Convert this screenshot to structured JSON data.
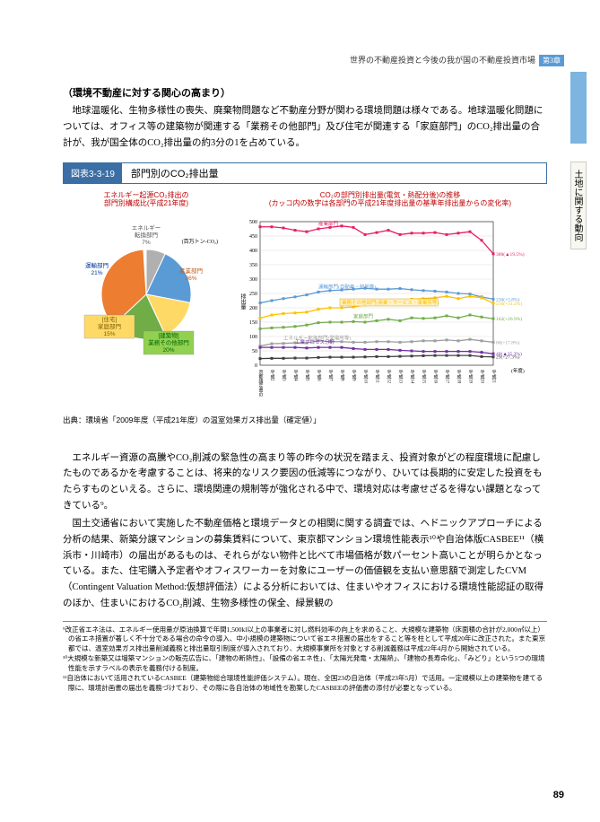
{
  "header": {
    "text": "世界の不動産投資と今後の我が国の不動産投資市場",
    "chapter": "第3章"
  },
  "side_tab": "土地に関する動向",
  "subtitle": "（環境不動産に対する関心の高まり）",
  "para1": "地球温暖化、生物多様性の喪失、廃棄物問題など不動産分野が関わる環境問題は様々である。地球温暖化問題については、オフィス等の建築物が関連する「業務その他部門」及び住宅が関連する「家庭部門」のCO₂排出量の合計が、我が国全体のCO₂排出量の約3分の1を占めている。",
  "figure": {
    "num": "図表3-3-19",
    "title": "部門別のCO₂排出量"
  },
  "pie": {
    "title1": "エネルギー起源CO₂排出の",
    "title2": "部門別構成比(平成21年度)",
    "unit": "(百万トン-CO₂)",
    "slices": [
      {
        "label": "エネルギー転換部門",
        "pct": 7,
        "color": "#b0b0b0",
        "text": "7%"
      },
      {
        "label": "運輸部門",
        "pct": 21,
        "color": "#5b9bd5",
        "text": "21%"
      },
      {
        "label": "[住宅]\\n家庭部門",
        "pct": 15,
        "color": "#ffd966",
        "text": "15%"
      },
      {
        "label": "[建築物]\\n業務その他部門",
        "pct": 20,
        "color": "#70ad47",
        "text": "20%"
      },
      {
        "label": "産業部門",
        "pct": 36,
        "color": "#ed7d31",
        "text": "36%"
      }
    ]
  },
  "linechart": {
    "title1": "CO₂の部門別排出量(電気・熱配分後)の推移",
    "title2": "(カッコ内の数字は各部門の平成21年度排出量の基準年排出量からの変化率)",
    "ylabel": "排出量",
    "ymax": 500,
    "ymin": 0,
    "ytick": 50,
    "xlabels": [
      "京都議定書の基準年",
      "平成2",
      "平成3",
      "平成4",
      "平成5",
      "平成6",
      "平成7",
      "平成8",
      "平成9",
      "平成10",
      "平成11",
      "平成12",
      "平成13",
      "平成14",
      "平成15",
      "平成16",
      "平成17",
      "平成18",
      "平成19",
      "平成20",
      "平成21"
    ],
    "xunit": "(年度)",
    "series": [
      {
        "name": "産業部門",
        "color": "#e91e63",
        "values": [
          482,
          482,
          478,
          470,
          465,
          475,
          480,
          485,
          480,
          455,
          462,
          470,
          455,
          460,
          460,
          462,
          455,
          460,
          465,
          435,
          388
        ],
        "endlabel": "388(▲19.5%)"
      },
      {
        "name": "運輸部門(自動車・船舶等)",
        "color": "#5b9bd5",
        "values": [
          217,
          225,
          232,
          238,
          245,
          255,
          260,
          262,
          265,
          268,
          265,
          265,
          267,
          263,
          260,
          258,
          255,
          250,
          248,
          238,
          230
        ],
        "endlabel": "230(+5.8%)"
      },
      {
        "name": "業務その他部門(商業・サービス・事業所等)",
        "color": "#ffc000",
        "boxed": true,
        "values": [
          164,
          175,
          180,
          182,
          185,
          195,
          200,
          200,
          203,
          210,
          215,
          220,
          225,
          230,
          232,
          235,
          240,
          232,
          240,
          235,
          216
        ],
        "endlabel": "216(+31.2%)"
      },
      {
        "name": "家庭部門",
        "color": "#70ad47",
        "values": [
          127,
          130,
          132,
          135,
          140,
          148,
          150,
          150,
          152,
          150,
          155,
          160,
          155,
          165,
          163,
          165,
          172,
          165,
          175,
          168,
          162
        ],
        "endlabel": "162(+26.9%)"
      },
      {
        "name": "エネルギー転換部門(発電所等)",
        "color": "#9e9e9e",
        "values": [
          67,
          75,
          76,
          78,
          78,
          85,
          82,
          82,
          80,
          80,
          82,
          82,
          80,
          82,
          85,
          85,
          88,
          85,
          90,
          85,
          80
        ],
        "endlabel": "80(+17.8%)"
      },
      {
        "name": "工業プロセス分野",
        "color": "#7030a0",
        "values": [
          62,
          62,
          62,
          62,
          60,
          62,
          62,
          62,
          58,
          55,
          55,
          55,
          52,
          50,
          48,
          48,
          48,
          48,
          48,
          45,
          40
        ],
        "endlabel": "40(▲35.3%)"
      },
      {
        "name": "廃棄物分野",
        "color": "#404040",
        "values": [
          23,
          24,
          24,
          25,
          25,
          27,
          28,
          28,
          28,
          29,
          30,
          30,
          31,
          32,
          33,
          34,
          34,
          34,
          34,
          30,
          29
        ],
        "endlabel": "29(+27.3%)"
      }
    ]
  },
  "source": "出典：環境省「2009年度（平成21年度）の温室効果ガス排出量（確定値）」",
  "para2": "エネルギー資源の高騰やCO₂削減の緊急性の高まり等の昨今の状況を踏まえ、投資対象がどの程度環境に配慮したものであるかを考慮することは、将来的なリスク要因の低減等につながり、ひいては長期的に安定した投資をもたらすものといえる。さらに、環境関連の規制等が強化される中で、環境対応は考慮せざるを得ない課題となってきている⁹。",
  "para3": "国土交通省において実施した不動産価格と環境データとの相関に関する調査では、ヘドニックアプローチによる分析の結果、新築分譲マンションの募集賃料について、東京都マンション環境性能表示¹⁰や自治体版CASBEE¹¹（横浜市・川崎市）の届出があるものは、それらがない物件と比べて市場価格が数パーセント高いことが明らかとなっている。また、住宅購入予定者やオフィスワーカーを対象にユーザーの価値観を支払い意思額で測定したCVM（Contingent Valuation Method:仮想評価法）による分析においては、住まいやオフィスにおける環境性能認証の取得のほか、住まいにおけるCO₂削減、生物多様性の保全、緑景観の",
  "footnotes": [
    "⁹改正省エネ法は、エネルギー使用量が原油換算で年間1,500kl以上の事業者に対し燃料効率の向上を求めること、大規模な建築物（床面積の合計が2,000㎡以上）の省エネ措置が著しく不十分である場合の命令の導入、中小規模の建築物について省エネ措置の届出をすること等を柱として平成20年に改正された。また東京都では、温室効果ガス排出量削減義務と排出量取引制度が導入されており、大規模事業所を対象とする削減義務は平成22年4月から開始されている。",
    "¹⁰大規模な新築又は増築マンションの販売広告に、「建物の断熱性」、「設備の省エネ性」、「太陽光発電・太陽熱」、「建物の長寿命化」、「みどり」という5つの環境性能を示すラベルの表示を義務付ける制度。",
    "¹¹自治体において活用されているCASBEE（建築物総合環境性能評価システム）。現在、全国23の自治体（平成23年5月）で活用。一定規模以上の建築物を建てる際に、環境計画書の届出を義務づけており、その際に各自治体の地域性を勘案したCASBEEの評価書の添付が必要となっている。"
  ],
  "page": "89"
}
